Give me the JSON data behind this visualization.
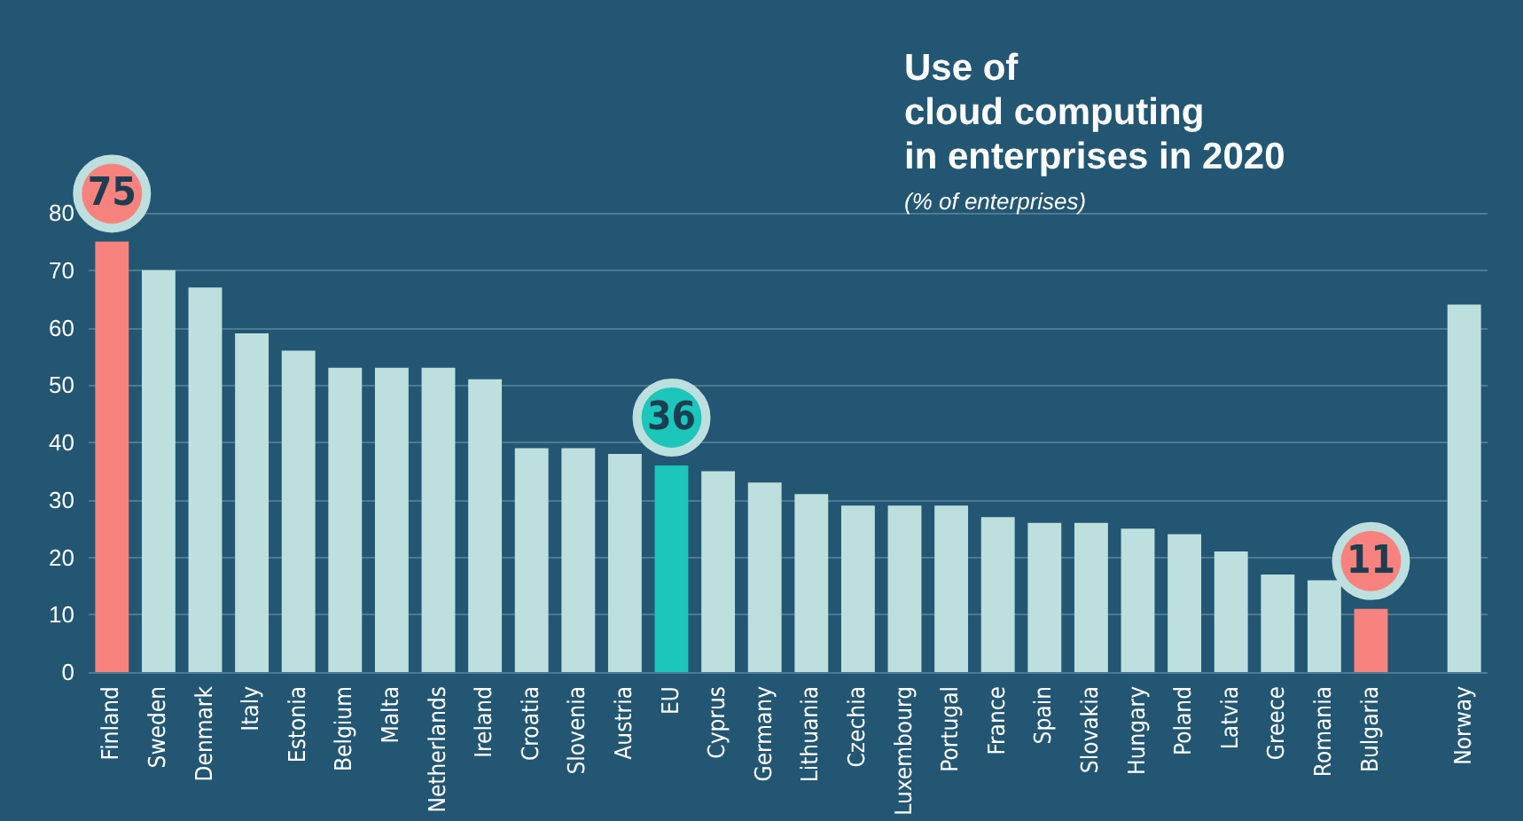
{
  "chart_data": {
    "type": "bar",
    "title": "Use of\ncloud computing\nin enterprises in 2020",
    "subtitle": "(% of enterprises)",
    "categories": [
      "Finland",
      "Sweden",
      "Denmark",
      "Italy",
      "Estonia",
      "Belgium",
      "Malta",
      "Netherlands",
      "Ireland",
      "Croatia",
      "Slovenia",
      "Austria",
      "EU",
      "Cyprus",
      "Germany",
      "Lithuania",
      "Czechia",
      "Luxembourg",
      "Portugal",
      "France",
      "Spain",
      "Slovakia",
      "Hungary",
      "Poland",
      "Latvia",
      "Greece",
      "Romania",
      "Bulgaria",
      null,
      "Norway"
    ],
    "values": [
      75,
      70,
      67,
      59,
      56,
      53,
      53,
      53,
      51,
      39,
      39,
      38,
      36,
      35,
      33,
      31,
      29,
      29,
      29,
      27,
      26,
      26,
      25,
      24,
      21,
      17,
      16,
      11,
      null,
      64
    ],
    "colors": [
      "#f8837e",
      "#bde0df",
      "#bde0df",
      "#bde0df",
      "#bde0df",
      "#bde0df",
      "#bde0df",
      "#bde0df",
      "#bde0df",
      "#bde0df",
      "#bde0df",
      "#bde0df",
      "#1cc6ba",
      "#bde0df",
      "#bde0df",
      "#bde0df",
      "#bde0df",
      "#bde0df",
      "#bde0df",
      "#bde0df",
      "#bde0df",
      "#bde0df",
      "#bde0df",
      "#bde0df",
      "#bde0df",
      "#bde0df",
      "#bde0df",
      "#f8837e",
      "#bde0df",
      "#bde0df"
    ],
    "value_labels": [
      "75",
      null,
      null,
      null,
      null,
      null,
      null,
      null,
      null,
      null,
      null,
      null,
      "36",
      null,
      null,
      null,
      null,
      null,
      null,
      null,
      null,
      null,
      null,
      null,
      null,
      null,
      null,
      "11",
      null,
      null
    ],
    "ylim": [
      0,
      80
    ],
    "yticks": [
      0,
      10,
      20,
      30,
      40,
      50,
      60,
      70,
      80
    ],
    "grid": "y"
  }
}
